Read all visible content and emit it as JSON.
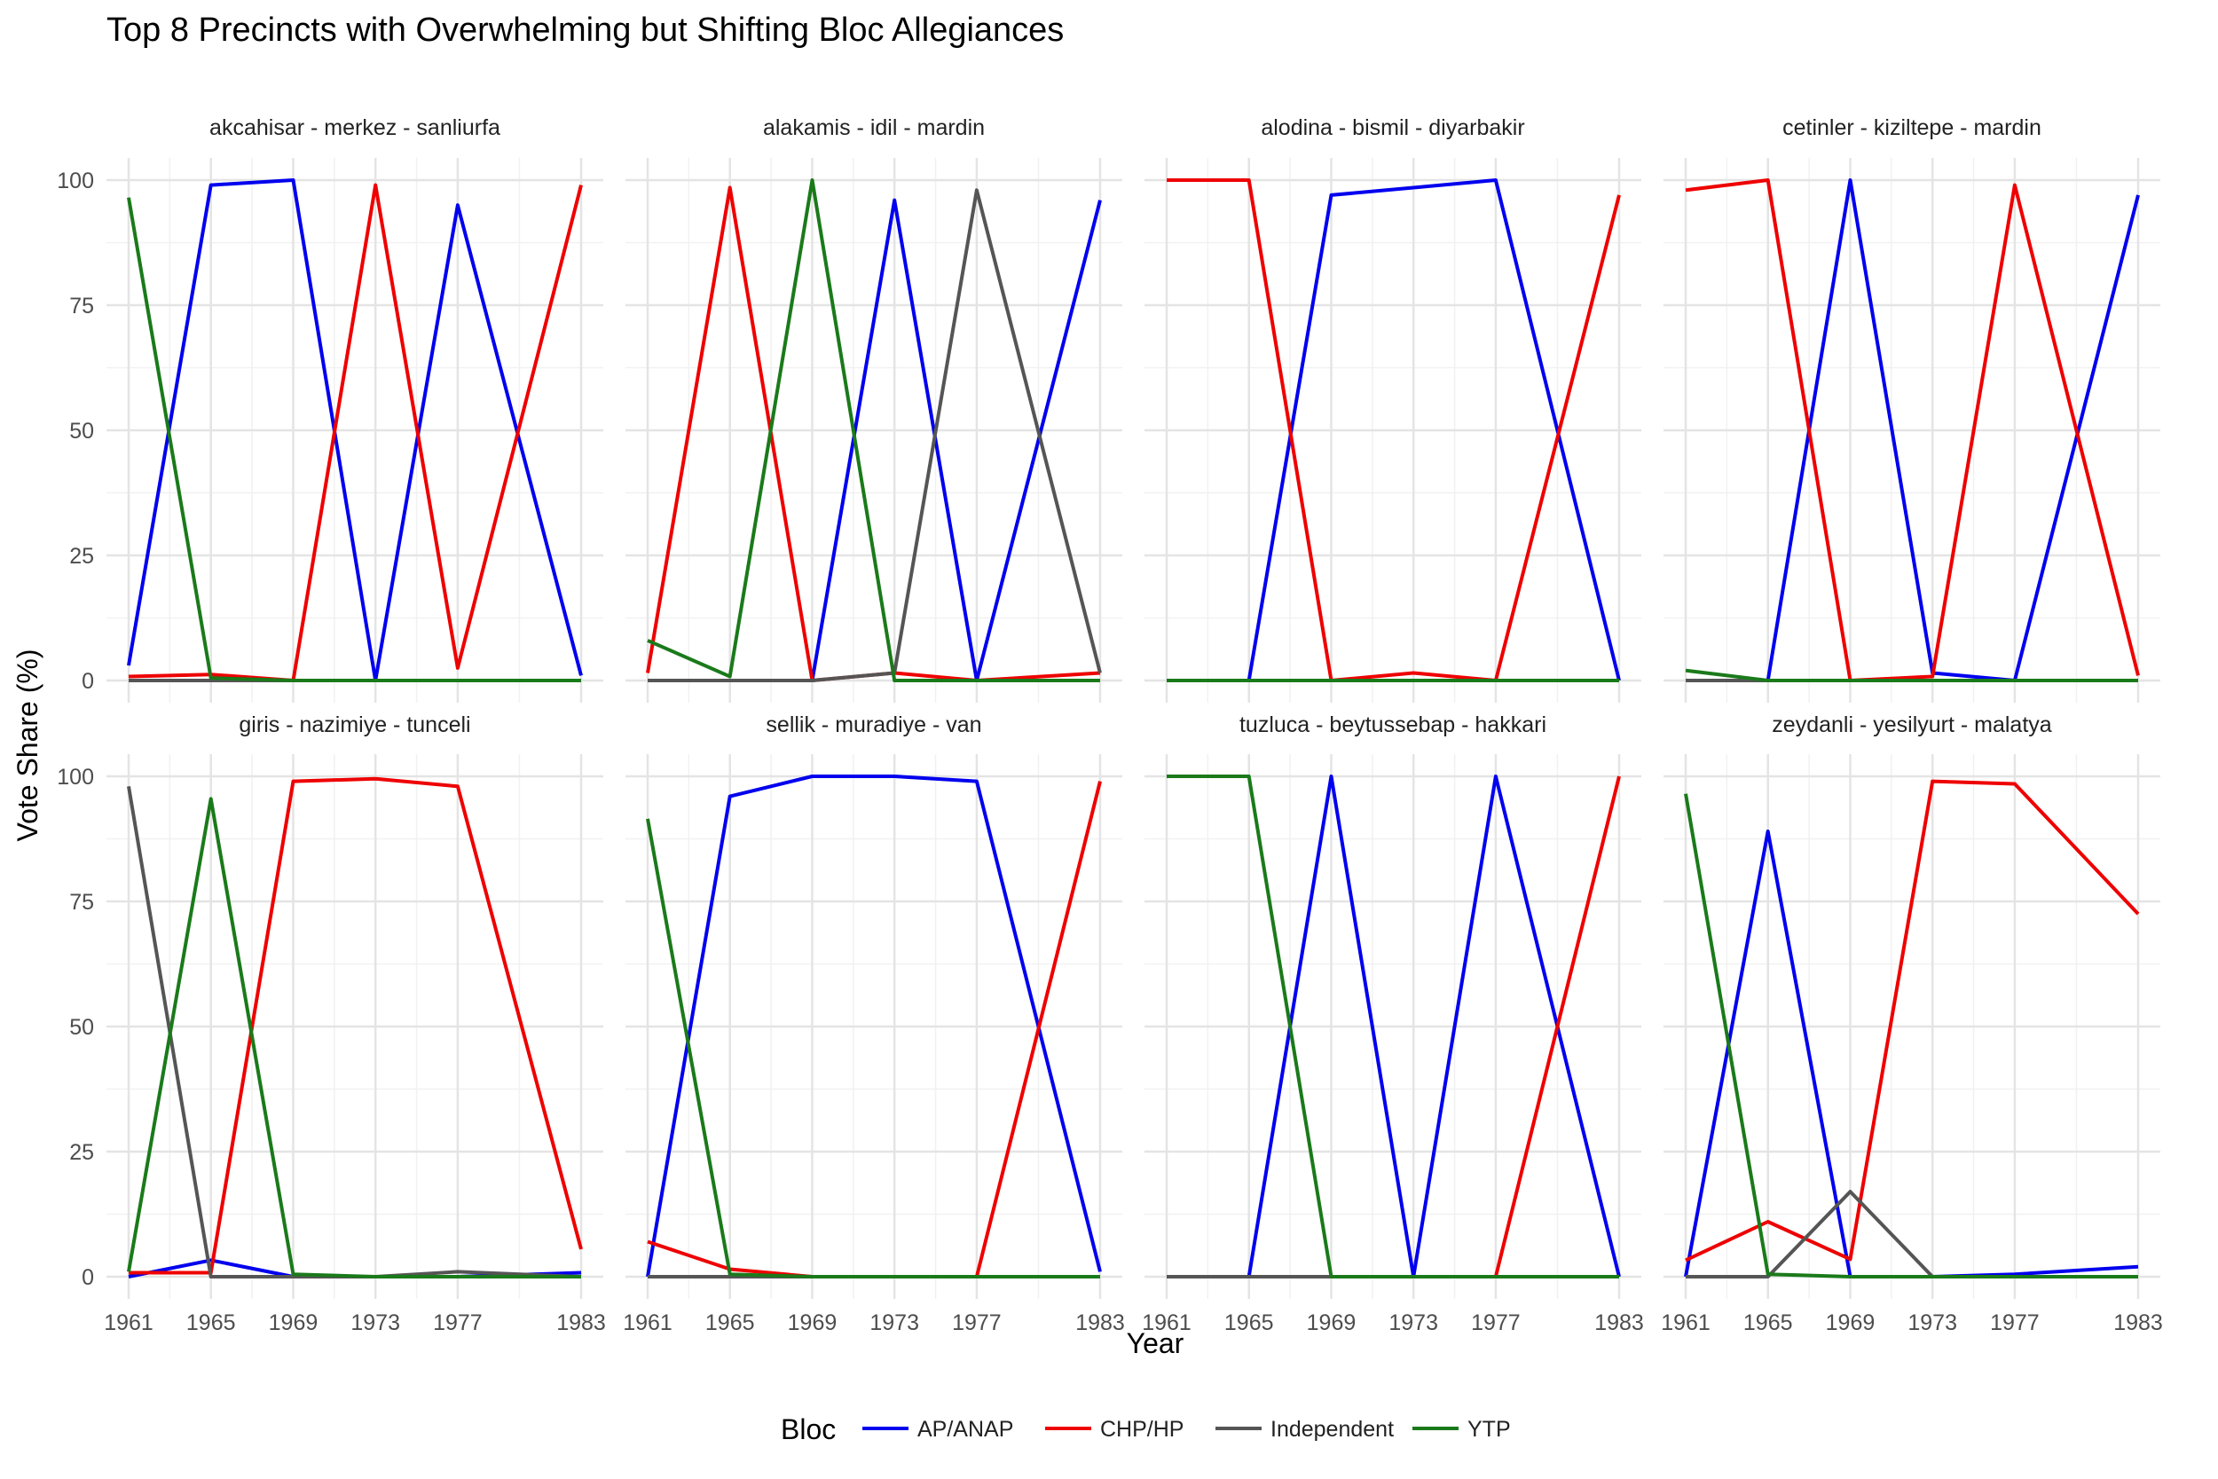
{
  "chart_data": {
    "type": "line",
    "title": "Top 8 Precincts with Overwhelming but Shifting Bloc Allegiances",
    "xlabel": "Year",
    "ylabel": "Vote Share (%)",
    "x": [
      1961,
      1965,
      1969,
      1973,
      1977,
      1983
    ],
    "x_ticks": [
      1961,
      1965,
      1969,
      1973,
      1977,
      1983
    ],
    "ylim": [
      0,
      100
    ],
    "y_ticks": [
      0,
      25,
      50,
      75,
      100
    ],
    "grid": true,
    "legend": {
      "title": "Bloc",
      "position": "bottom",
      "entries": [
        {
          "name": "AP/ANAP",
          "color": "#0000ee"
        },
        {
          "name": "CHP/HP",
          "color": "#ee0000"
        },
        {
          "name": "Independent",
          "color": "#555555"
        },
        {
          "name": "YTP",
          "color": "#1a7a1a"
        }
      ]
    },
    "panels": [
      {
        "title": "akcahisar - merkez - sanliurfa",
        "series": [
          {
            "name": "AP/ANAP",
            "values": [
              3,
              99,
              100,
              0,
              95,
              1
            ]
          },
          {
            "name": "CHP/HP",
            "values": [
              0.8,
              1.2,
              0,
              99,
              2.5,
              99
            ]
          },
          {
            "name": "Independent",
            "values": [
              0,
              0,
              0,
              0,
              0,
              0
            ]
          },
          {
            "name": "YTP",
            "values": [
              96.5,
              0.5,
              0,
              0,
              0,
              0
            ]
          }
        ]
      },
      {
        "title": "alakamis - idil - mardin",
        "series": [
          {
            "name": "AP/ANAP",
            "values": [
              0,
              0,
              0,
              96,
              0,
              96
            ]
          },
          {
            "name": "CHP/HP",
            "values": [
              1.5,
              98.5,
              0,
              1.5,
              0,
              1.5
            ]
          },
          {
            "name": "Independent",
            "values": [
              0,
              0,
              0,
              1.5,
              98,
              1.5
            ]
          },
          {
            "name": "YTP",
            "values": [
              8,
              0.8,
              100,
              0,
              0,
              0
            ]
          }
        ]
      },
      {
        "title": "alodina - bismil - diyarbakir",
        "series": [
          {
            "name": "AP/ANAP",
            "values": [
              0,
              0,
              97,
              98.5,
              100,
              0
            ]
          },
          {
            "name": "CHP/HP",
            "values": [
              100,
              100,
              0,
              1.5,
              0,
              97
            ]
          },
          {
            "name": "Independent",
            "values": [
              0,
              0,
              0,
              0,
              0,
              0
            ]
          },
          {
            "name": "YTP",
            "values": [
              0,
              0,
              0,
              0,
              0,
              0
            ]
          }
        ]
      },
      {
        "title": "cetinler - kiziltepe - mardin",
        "series": [
          {
            "name": "AP/ANAP",
            "values": [
              0,
              0,
              100,
              1.5,
              0,
              97
            ]
          },
          {
            "name": "CHP/HP",
            "values": [
              98,
              100,
              0,
              0.8,
              99,
              1
            ]
          },
          {
            "name": "Independent",
            "values": [
              0,
              0,
              0,
              0,
              0,
              0
            ]
          },
          {
            "name": "YTP",
            "values": [
              2,
              0,
              0,
              0,
              0,
              0
            ]
          }
        ]
      },
      {
        "title": "giris - nazimiye - tunceli",
        "series": [
          {
            "name": "AP/ANAP",
            "values": [
              0,
              3.3,
              0,
              0,
              0,
              0.8
            ]
          },
          {
            "name": "CHP/HP",
            "values": [
              0.8,
              0.8,
              99,
              99.5,
              98,
              5.5
            ]
          },
          {
            "name": "Independent",
            "values": [
              98,
              0,
              0,
              0,
              1,
              0
            ]
          },
          {
            "name": "YTP",
            "values": [
              1,
              95.5,
              0.5,
              0,
              0,
              0
            ]
          }
        ]
      },
      {
        "title": "sellik - muradiye - van",
        "series": [
          {
            "name": "AP/ANAP",
            "values": [
              0,
              96,
              100,
              100,
              99,
              1
            ]
          },
          {
            "name": "CHP/HP",
            "values": [
              7,
              1.5,
              0,
              0,
              0,
              99
            ]
          },
          {
            "name": "Independent",
            "values": [
              0,
              0,
              0,
              0,
              0,
              0
            ]
          },
          {
            "name": "YTP",
            "values": [
              91.5,
              0.5,
              0,
              0,
              0,
              0
            ]
          }
        ]
      },
      {
        "title": "tuzluca - beytussebap - hakkari",
        "series": [
          {
            "name": "AP/ANAP",
            "values": [
              0,
              0,
              100,
              0,
              100,
              0
            ]
          },
          {
            "name": "CHP/HP",
            "values": [
              0,
              0,
              0,
              0,
              0,
              100
            ]
          },
          {
            "name": "Independent",
            "values": [
              0,
              0,
              0,
              0,
              0,
              0
            ]
          },
          {
            "name": "YTP",
            "values": [
              100,
              100,
              0,
              0,
              0,
              0
            ]
          }
        ]
      },
      {
        "title": "zeydanli - yesilyurt - malatya",
        "series": [
          {
            "name": "AP/ANAP",
            "values": [
              0,
              89,
              0,
              0,
              0.5,
              2
            ]
          },
          {
            "name": "CHP/HP",
            "values": [
              3.3,
              11,
              3.5,
              99,
              98.5,
              72.5
            ]
          },
          {
            "name": "Independent",
            "values": [
              0,
              0,
              17,
              0,
              0,
              0
            ]
          },
          {
            "name": "YTP",
            "values": [
              96.5,
              0.5,
              0,
              0,
              0,
              0
            ]
          }
        ]
      }
    ]
  }
}
